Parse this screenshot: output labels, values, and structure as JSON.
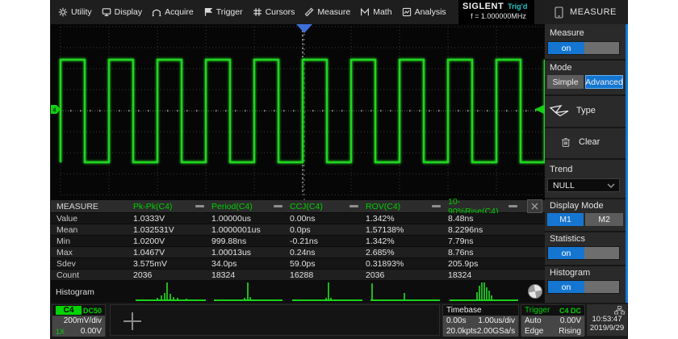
{
  "colors": {
    "accent_blue": "#1576d2",
    "trace_green": "#21d521",
    "status_cyan": "#1ec8c8",
    "measure_green": "#00cf00"
  },
  "menu": {
    "items": [
      {
        "label": "Utility",
        "icon": "gear-icon"
      },
      {
        "label": "Display",
        "icon": "display-icon"
      },
      {
        "label": "Acquire",
        "icon": "acquire-icon"
      },
      {
        "label": "Trigger",
        "icon": "flag-icon"
      },
      {
        "label": "Cursors",
        "icon": "cursors-icon"
      },
      {
        "label": "Measure",
        "icon": "measure-icon"
      },
      {
        "label": "Math",
        "icon": "math-icon"
      },
      {
        "label": "Analysis",
        "icon": "analysis-icon"
      }
    ]
  },
  "logo": {
    "brand": "SIGLENT",
    "trig_status": "Trig'd",
    "freq": "f = 1.000000MHz"
  },
  "panel": {
    "title": "MEASURE"
  },
  "sidebar": {
    "measure_label": "Measure",
    "on_label": "on",
    "mode_label": "Mode",
    "simple": "Simple",
    "advanced": "Advanced",
    "type_label": "Type",
    "clear_label": "Clear",
    "trend_label": "Trend",
    "trend_value": "NULL",
    "display_mode_label": "Display Mode",
    "m1": "M1",
    "m2": "M2",
    "statistics_label": "Statistics",
    "histogram_label": "Histogram"
  },
  "table": {
    "corner": "MEASURE",
    "row_labels": [
      "Value",
      "Mean",
      "Min",
      "Max",
      "Sdev",
      "Count"
    ],
    "columns": [
      {
        "name": "Pk-Pk(C4)",
        "values": [
          "1.0333V",
          "1.032531V",
          "1.0200V",
          "1.0467V",
          "3.575mV",
          "2036"
        ]
      },
      {
        "name": "Period(C4)",
        "values": [
          "1.00000us",
          "1.0000001us",
          "999.88ns",
          "1.00013us",
          "34.0ps",
          "18324"
        ]
      },
      {
        "name": "CCJ(C4)",
        "values": [
          "0.00ns",
          "0.0ps",
          "-0.21ns",
          "0.24ns",
          "59.0ps",
          "16288"
        ]
      },
      {
        "name": "ROV(C4)",
        "values": [
          "1.342%",
          "1.57138%",
          "1.342%",
          "2.685%",
          "0.31893%",
          "2036"
        ]
      },
      {
        "name": "10-90%Rise(C4)",
        "values": [
          "8.48ns",
          "8.2296ns",
          "7.79ns",
          "8.76ns",
          "205.9ps",
          "18324"
        ]
      }
    ]
  },
  "histogram_strip": {
    "label": "Histogram"
  },
  "channel": {
    "name": "C4",
    "coupling": "DC50",
    "scale": "200mV/div",
    "probe": "1X",
    "offset": "0.00V"
  },
  "timebase": {
    "label": "Timebase",
    "delay": "0.00s",
    "scale": "1.00us/div",
    "points": "20.0kpts",
    "rate": "2.00GSa/s"
  },
  "trigger": {
    "label": "Trigger",
    "source": "C4 DC",
    "mode": "Auto",
    "level": "0.00V",
    "type": "Edge",
    "slope": "Rising"
  },
  "clock": {
    "time": "10:53:47",
    "date": "2019/9/29"
  }
}
